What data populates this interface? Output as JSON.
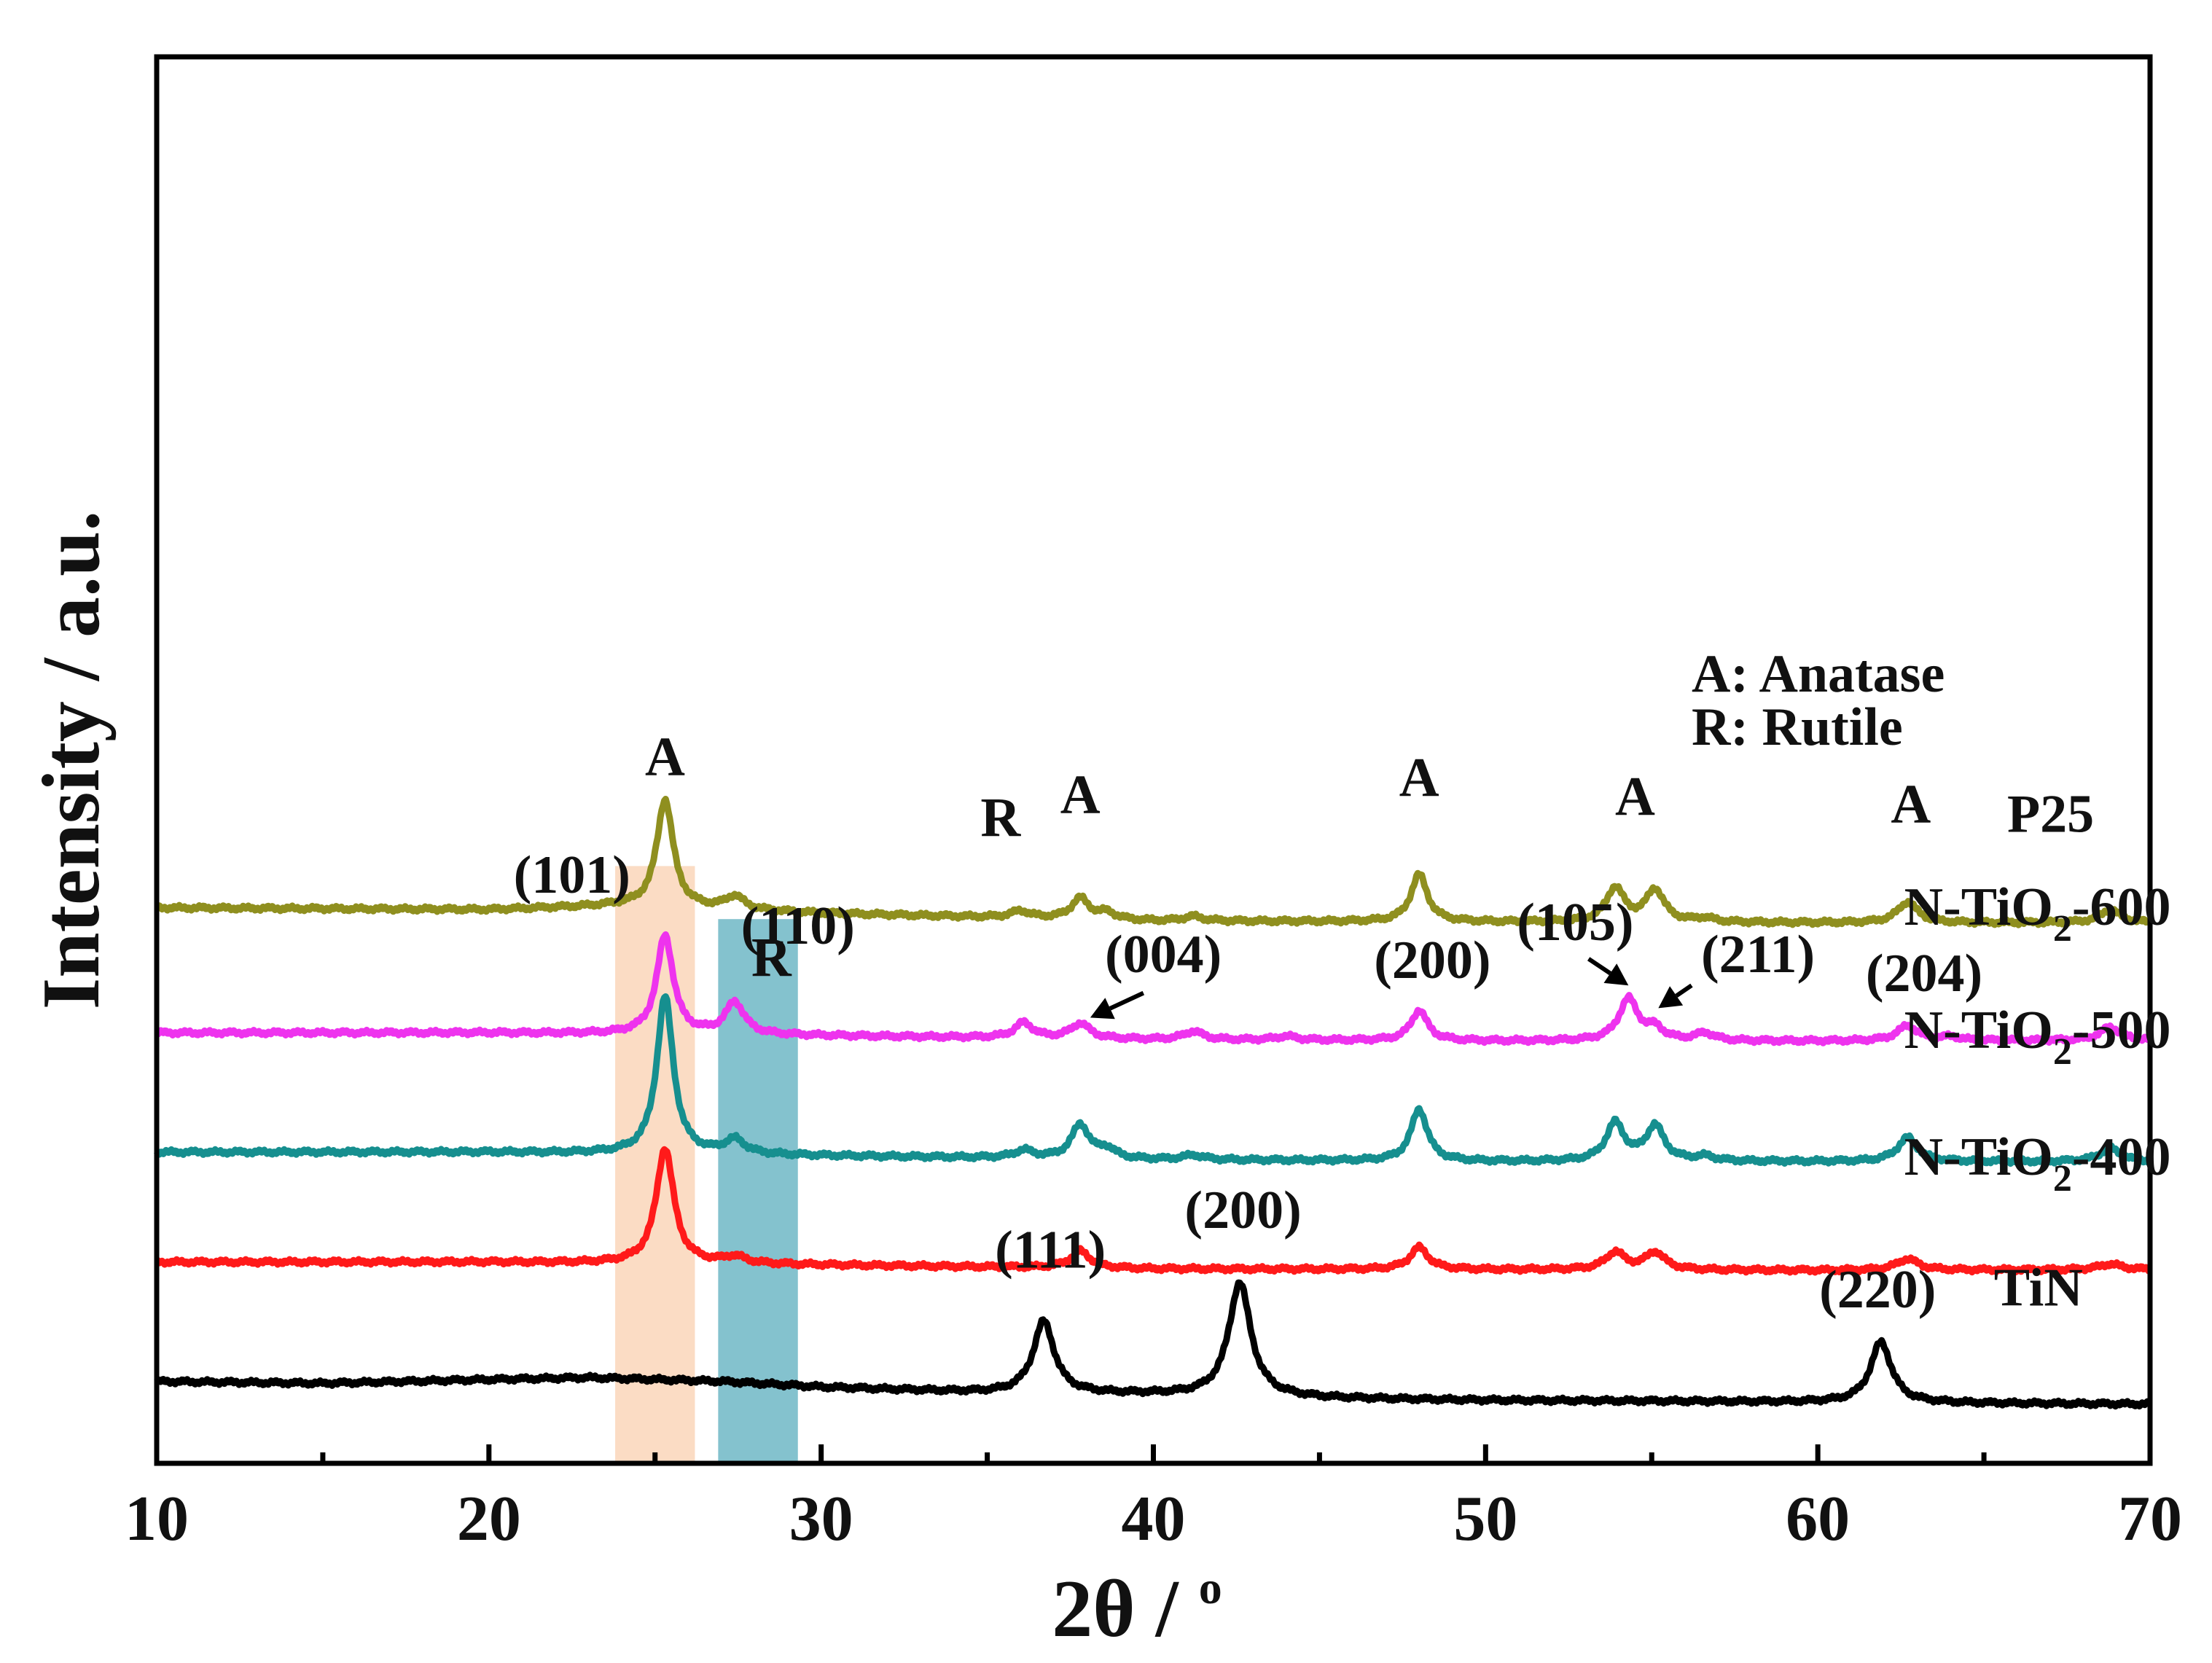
{
  "chart_data": {
    "type": "line",
    "title": "",
    "xlabel": "2θ / °",
    "xlabel_main": "2θ / ",
    "xlabel_sup": "o",
    "ylabel": "Intensity / a.u.",
    "xlim": [
      10,
      70
    ],
    "xticks": [
      10,
      20,
      30,
      40,
      50,
      60,
      70
    ],
    "xtick_labels": [
      "10",
      "20",
      "30",
      "40",
      "50",
      "60",
      "70"
    ],
    "minor_xticks": [
      15,
      25,
      35,
      45,
      55,
      65
    ],
    "y_ticks_shown": false,
    "grid": false,
    "bands": [
      {
        "name": "anatase-101-band",
        "x_range": [
          23.8,
          26.2
        ],
        "color": "#f7bf93",
        "opacity": 0.55,
        "y_top": 1.48
      },
      {
        "name": "rutile-110-band",
        "x_range": [
          26.9,
          29.3
        ],
        "color": "#1f8fa5",
        "opacity": 0.55,
        "y_top": 1.34,
        "label": "R",
        "label_x": 28.5
      }
    ],
    "series": [
      {
        "name": "TiN",
        "label": "TiN",
        "color": "#000000",
        "offset": 0.06,
        "baseline": [
          [
            10,
            0.06
          ],
          [
            15,
            0.055
          ],
          [
            20,
            0.065
          ],
          [
            23,
            0.07
          ],
          [
            27,
            0.06
          ],
          [
            30,
            0.045
          ],
          [
            35,
            0.03
          ],
          [
            40,
            0.025
          ],
          [
            45,
            0.015
          ],
          [
            50,
            0.01
          ],
          [
            55,
            0.008
          ],
          [
            60,
            0.005
          ],
          [
            65,
            0.002
          ],
          [
            70,
            0.0
          ]
        ],
        "peaks": [
          {
            "pos": 36.7,
            "height": 0.19,
            "width": 0.38
          },
          {
            "pos": 42.6,
            "height": 0.3,
            "width": 0.4
          },
          {
            "pos": 61.9,
            "height": 0.16,
            "width": 0.38
          }
        ]
      },
      {
        "name": "N-TiO2-400",
        "label_main": "N-TiO",
        "label_sub": "2",
        "label_tail": "-400",
        "color": "#ff1a1a",
        "offset": 0.435,
        "baseline": [
          [
            10,
            0.0
          ],
          [
            20,
            0.0
          ],
          [
            30,
            -0.008
          ],
          [
            40,
            -0.018
          ],
          [
            50,
            -0.02
          ],
          [
            60,
            -0.022
          ],
          [
            70,
            -0.02
          ]
        ],
        "peaks": [
          {
            "pos": 25.3,
            "height": 0.305,
            "width": 0.32
          },
          {
            "pos": 27.4,
            "height": 0.018,
            "width": 0.4
          },
          {
            "pos": 37.8,
            "height": 0.045,
            "width": 0.35
          },
          {
            "pos": 48.0,
            "height": 0.058,
            "width": 0.33
          },
          {
            "pos": 53.9,
            "height": 0.046,
            "width": 0.35
          },
          {
            "pos": 55.1,
            "height": 0.046,
            "width": 0.35
          },
          {
            "pos": 62.7,
            "height": 0.03,
            "width": 0.38
          },
          {
            "pos": 68.8,
            "height": 0.015,
            "width": 0.4
          }
        ]
      },
      {
        "name": "N-TiO2-500",
        "label_main": "N-TiO",
        "label_sub": "2",
        "label_tail": "-500",
        "color": "#168f8f",
        "offset": 0.725,
        "baseline": [
          [
            10,
            0.0
          ],
          [
            20,
            0.0
          ],
          [
            30,
            -0.01
          ],
          [
            40,
            -0.02
          ],
          [
            50,
            -0.025
          ],
          [
            60,
            -0.025
          ],
          [
            70,
            -0.025
          ]
        ],
        "peaks": [
          {
            "pos": 25.3,
            "height": 0.415,
            "width": 0.3
          },
          {
            "pos": 27.4,
            "height": 0.038,
            "width": 0.36
          },
          {
            "pos": 36.1,
            "height": 0.02,
            "width": 0.33
          },
          {
            "pos": 37.8,
            "height": 0.09,
            "width": 0.32
          },
          {
            "pos": 38.6,
            "height": 0.025,
            "width": 0.3
          },
          {
            "pos": 41.2,
            "height": 0.012,
            "width": 0.35
          },
          {
            "pos": 48.0,
            "height": 0.137,
            "width": 0.3
          },
          {
            "pos": 53.9,
            "height": 0.1,
            "width": 0.33
          },
          {
            "pos": 55.1,
            "height": 0.092,
            "width": 0.33
          },
          {
            "pos": 56.6,
            "height": 0.012,
            "width": 0.33
          },
          {
            "pos": 62.7,
            "height": 0.063,
            "width": 0.36
          },
          {
            "pos": 68.8,
            "height": 0.035,
            "width": 0.38
          }
        ]
      },
      {
        "name": "N-TiO2-600",
        "label_main": "N-TiO",
        "label_sub": "2",
        "label_tail": "-600",
        "color": "#ee33ee",
        "offset": 1.04,
        "baseline": [
          [
            10,
            0.0
          ],
          [
            20,
            0.0
          ],
          [
            30,
            -0.008
          ],
          [
            40,
            -0.018
          ],
          [
            50,
            -0.022
          ],
          [
            60,
            -0.022
          ],
          [
            70,
            -0.02
          ]
        ],
        "peaks": [
          {
            "pos": 25.3,
            "height": 0.26,
            "width": 0.3
          },
          {
            "pos": 27.4,
            "height": 0.085,
            "width": 0.34
          },
          {
            "pos": 36.1,
            "height": 0.04,
            "width": 0.33
          },
          {
            "pos": 37.8,
            "height": 0.04,
            "width": 0.34
          },
          {
            "pos": 41.2,
            "height": 0.022,
            "width": 0.34
          },
          {
            "pos": 44.0,
            "height": 0.01,
            "width": 0.36
          },
          {
            "pos": 48.0,
            "height": 0.08,
            "width": 0.3
          },
          {
            "pos": 54.3,
            "height": 0.11,
            "width": 0.35
          },
          {
            "pos": 55.1,
            "height": 0.03,
            "width": 0.3
          },
          {
            "pos": 56.6,
            "height": 0.02,
            "width": 0.33
          },
          {
            "pos": 62.7,
            "height": 0.04,
            "width": 0.36
          },
          {
            "pos": 64.0,
            "height": 0.01,
            "width": 0.33
          },
          {
            "pos": 68.8,
            "height": 0.035,
            "width": 0.36
          }
        ]
      },
      {
        "name": "P25",
        "label": "P25",
        "color": "#8f8f1f",
        "offset": 1.37,
        "baseline": [
          [
            10,
            0.0
          ],
          [
            20,
            -0.005
          ],
          [
            24,
            0.005
          ],
          [
            30,
            -0.015
          ],
          [
            40,
            -0.035
          ],
          [
            50,
            -0.038
          ],
          [
            60,
            -0.04
          ],
          [
            70,
            -0.04
          ]
        ],
        "peaks": [
          {
            "pos": 25.3,
            "height": 0.285,
            "width": 0.3
          },
          {
            "pos": 27.4,
            "height": 0.035,
            "width": 0.34
          },
          {
            "pos": 36.0,
            "height": 0.018,
            "width": 0.33
          },
          {
            "pos": 37.8,
            "height": 0.055,
            "width": 0.32
          },
          {
            "pos": 38.6,
            "height": 0.018,
            "width": 0.3
          },
          {
            "pos": 41.2,
            "height": 0.012,
            "width": 0.34
          },
          {
            "pos": 48.0,
            "height": 0.125,
            "width": 0.3
          },
          {
            "pos": 53.9,
            "height": 0.09,
            "width": 0.33
          },
          {
            "pos": 55.1,
            "height": 0.085,
            "width": 0.33
          },
          {
            "pos": 56.6,
            "height": 0.01,
            "width": 0.33
          },
          {
            "pos": 62.7,
            "height": 0.055,
            "width": 0.36
          },
          {
            "pos": 68.8,
            "height": 0.035,
            "width": 0.36
          }
        ]
      }
    ],
    "series_labels": [
      {
        "series": "TiN",
        "text": "TiN",
        "x": 65.3,
        "y": 0.32
      },
      {
        "series": "N-TiO2-400",
        "main": "N-TiO",
        "sub": "2",
        "tail": "-400",
        "x": 62.6,
        "y": 0.665
      },
      {
        "series": "N-TiO2-500",
        "main": "N-TiO",
        "sub": "2",
        "tail": "-500",
        "x": 62.6,
        "y": 1.0
      },
      {
        "series": "N-TiO2-600",
        "main": "N-TiO",
        "sub": "2",
        "tail": "-600",
        "x": 62.6,
        "y": 1.325
      },
      {
        "series": "P25",
        "text": "P25",
        "x": 65.7,
        "y": 1.57
      }
    ],
    "phase_marks": [
      {
        "text": "A",
        "x": 25.3,
        "y": 1.72,
        "color": "#8a6545"
      },
      {
        "text": "R",
        "x": 35.4,
        "y": 1.56,
        "color": "#111111"
      },
      {
        "text": "A",
        "x": 37.8,
        "y": 1.62,
        "color": "#111111"
      },
      {
        "text": "A",
        "x": 48.0,
        "y": 1.665,
        "color": "#111111"
      },
      {
        "text": "A",
        "x": 54.5,
        "y": 1.615,
        "color": "#111111"
      },
      {
        "text": "A",
        "x": 62.8,
        "y": 1.595,
        "color": "#111111"
      }
    ],
    "hkl_labels": [
      {
        "text": "(101)",
        "x": 22.5,
        "y": 1.41
      },
      {
        "text": "(110)",
        "x": 29.3,
        "y": 1.275
      },
      {
        "text": "(004)",
        "x": 40.3,
        "y": 1.2
      },
      {
        "text": "(200)",
        "x": 48.4,
        "y": 1.185
      },
      {
        "text": "(105)",
        "x": 52.7,
        "y": 1.285
      },
      {
        "text": "(211)",
        "x": 58.2,
        "y": 1.2
      },
      {
        "text": "(204)",
        "x": 63.2,
        "y": 1.15
      },
      {
        "text": "(111)",
        "x": 36.9,
        "y": 0.42
      },
      {
        "text": "(200)",
        "x": 42.7,
        "y": 0.525
      },
      {
        "text": "(220)",
        "x": 61.8,
        "y": 0.315
      }
    ],
    "arrows": [
      {
        "from": [
          39.7,
          1.145
        ],
        "to": [
          38.1,
          1.08
        ]
      },
      {
        "from": [
          53.1,
          1.235
        ],
        "to": [
          54.3,
          1.165
        ]
      },
      {
        "from": [
          56.2,
          1.165
        ],
        "to": [
          55.2,
          1.105
        ]
      }
    ],
    "legend": {
      "placement": "top-right",
      "entries": [
        "A: Anatase",
        "R: Rutile"
      ],
      "x": 56.2,
      "y_entries": [
        1.94,
        1.8
      ]
    }
  }
}
